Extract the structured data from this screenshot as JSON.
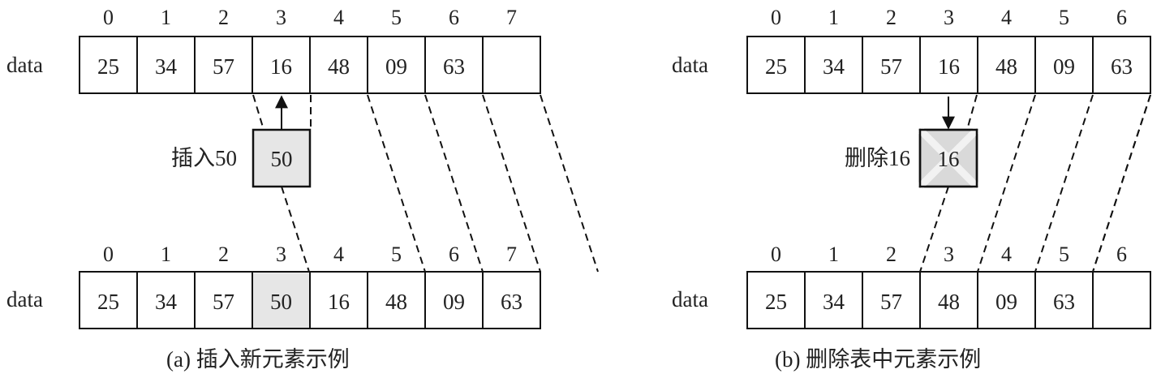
{
  "panel_a": {
    "caption": "(a) 插入新元素示例",
    "top": {
      "label": "data",
      "indices": [
        "0",
        "1",
        "2",
        "3",
        "4",
        "5",
        "6",
        "7"
      ],
      "values": [
        "25",
        "34",
        "57",
        "16",
        "48",
        "09",
        "63",
        ""
      ]
    },
    "insert_label": "插入50",
    "insert_value": "50",
    "bottom": {
      "label": "data",
      "indices": [
        "0",
        "1",
        "2",
        "3",
        "4",
        "5",
        "6",
        "7"
      ],
      "values": [
        "25",
        "34",
        "57",
        "50",
        "16",
        "48",
        "09",
        "63"
      ]
    }
  },
  "panel_b": {
    "caption": "(b) 删除表中元素示例",
    "top": {
      "label": "data",
      "indices": [
        "0",
        "1",
        "2",
        "3",
        "4",
        "5",
        "6"
      ],
      "values": [
        "25",
        "34",
        "57",
        "16",
        "48",
        "09",
        "63"
      ]
    },
    "delete_label": "删除16",
    "delete_value": "16",
    "bottom": {
      "label": "data",
      "indices": [
        "0",
        "1",
        "2",
        "3",
        "4",
        "5",
        "6"
      ],
      "values": [
        "25",
        "34",
        "57",
        "48",
        "09",
        "63",
        ""
      ]
    }
  }
}
